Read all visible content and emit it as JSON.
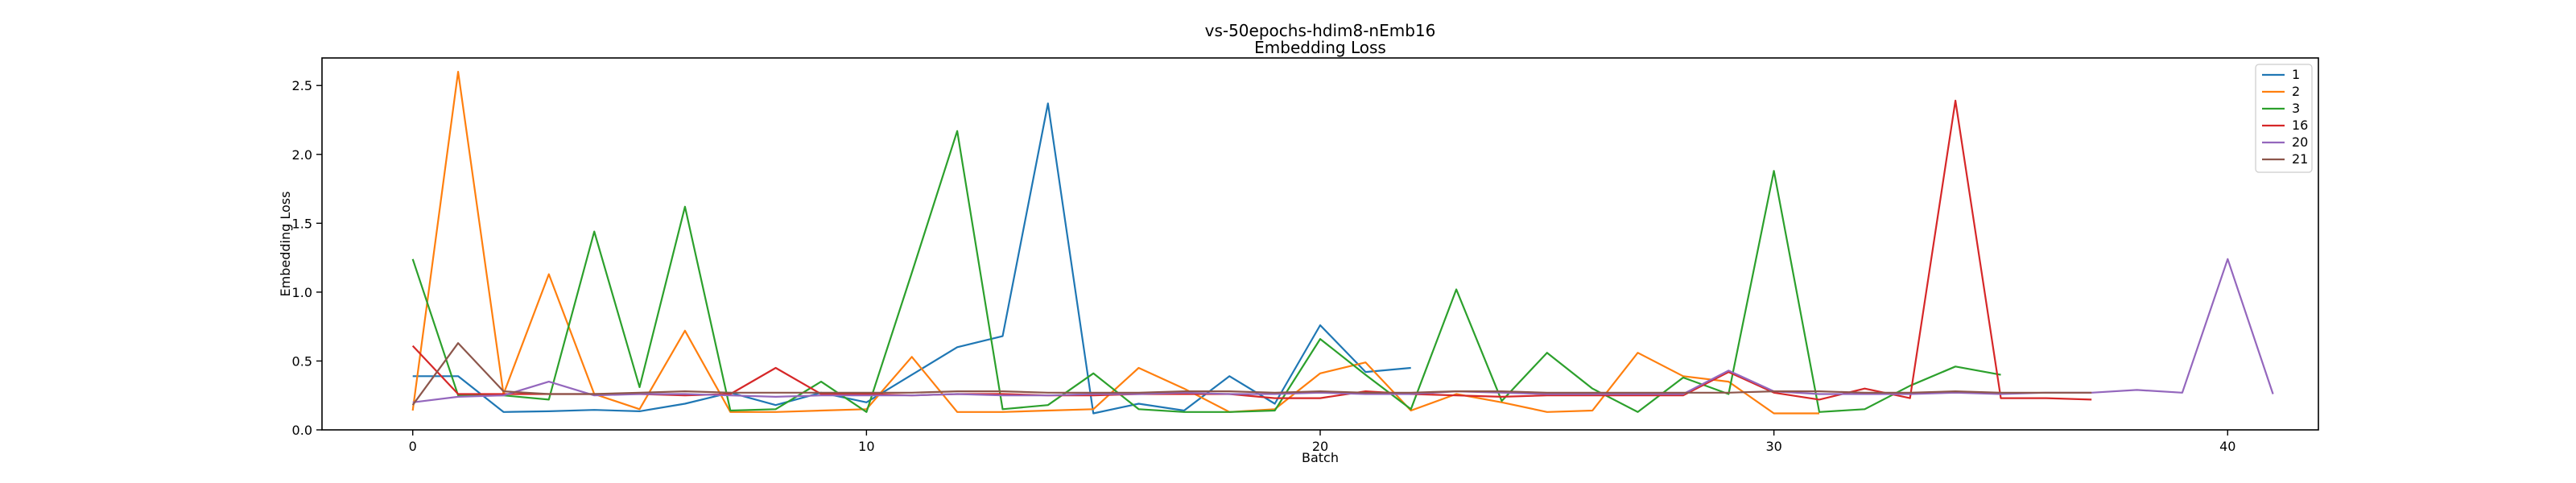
{
  "chart_data": {
    "type": "line",
    "title": "vs-50epochs-hdim8-nEmb16",
    "subtitle": "Embedding Loss",
    "xlabel": "Batch",
    "ylabel": "Embedding Loss",
    "xlim": [
      -2,
      42
    ],
    "ylim": [
      0,
      2.7
    ],
    "xticks": [
      0,
      10,
      20,
      30,
      40
    ],
    "yticks": [
      0.0,
      0.5,
      1.0,
      1.5,
      2.0,
      2.5
    ],
    "grid": false,
    "legend_position": "top-right",
    "series": [
      {
        "name": "1",
        "color": "#1f77b4",
        "x": [
          0,
          1,
          2,
          3,
          4,
          5,
          6,
          7,
          8,
          9,
          10,
          11,
          12,
          13,
          14,
          15,
          16,
          17,
          18,
          19,
          20,
          21,
          22
        ],
        "values": [
          0.39,
          0.39,
          0.13,
          0.135,
          0.145,
          0.135,
          0.19,
          0.27,
          0.18,
          0.27,
          0.2,
          0.4,
          0.6,
          0.68,
          2.37,
          0.12,
          0.19,
          0.14,
          0.39,
          0.19,
          0.76,
          0.42,
          0.45
        ]
      },
      {
        "name": "2",
        "color": "#ff7f0e",
        "x": [
          0,
          1,
          2,
          3,
          4,
          5,
          6,
          7,
          8,
          9,
          10,
          11,
          12,
          13,
          14,
          15,
          16,
          17,
          18,
          19,
          20,
          21,
          22,
          23,
          24,
          25,
          26,
          27,
          28,
          29,
          30,
          31
        ],
        "values": [
          0.14,
          2.6,
          0.26,
          1.13,
          0.26,
          0.15,
          0.72,
          0.13,
          0.13,
          0.14,
          0.15,
          0.53,
          0.13,
          0.13,
          0.14,
          0.15,
          0.45,
          0.3,
          0.13,
          0.15,
          0.41,
          0.49,
          0.14,
          0.26,
          0.2,
          0.13,
          0.14,
          0.56,
          0.39,
          0.35,
          0.12,
          0.12
        ]
      },
      {
        "name": "3",
        "color": "#2ca02c",
        "x": [
          0,
          1,
          2,
          3,
          4,
          5,
          6,
          7,
          8,
          9,
          10,
          11,
          12,
          13,
          14,
          15,
          16,
          17,
          18,
          19,
          20,
          21,
          22,
          23,
          24,
          25,
          26,
          27,
          28,
          29,
          30,
          31,
          32,
          33,
          34,
          35
        ],
        "values": [
          1.24,
          0.25,
          0.25,
          0.22,
          1.44,
          0.31,
          1.62,
          0.14,
          0.15,
          0.35,
          0.13,
          1.14,
          2.17,
          0.15,
          0.18,
          0.41,
          0.15,
          0.13,
          0.13,
          0.14,
          0.66,
          0.4,
          0.15,
          1.02,
          0.21,
          0.56,
          0.3,
          0.13,
          0.38,
          0.26,
          1.88,
          0.13,
          0.15,
          0.32,
          0.46,
          0.4
        ]
      },
      {
        "name": "16",
        "color": "#d62728",
        "x": [
          0,
          1,
          2,
          3,
          4,
          5,
          6,
          7,
          8,
          9,
          10,
          11,
          12,
          13,
          14,
          15,
          16,
          17,
          18,
          19,
          20,
          21,
          22,
          23,
          24,
          25,
          26,
          27,
          28,
          29,
          30,
          31,
          32,
          33,
          34,
          35,
          36,
          37
        ],
        "values": [
          0.61,
          0.26,
          0.26,
          0.26,
          0.26,
          0.26,
          0.25,
          0.26,
          0.45,
          0.26,
          0.26,
          0.25,
          0.26,
          0.26,
          0.25,
          0.25,
          0.26,
          0.26,
          0.26,
          0.23,
          0.23,
          0.28,
          0.26,
          0.25,
          0.24,
          0.25,
          0.25,
          0.25,
          0.25,
          0.42,
          0.27,
          0.22,
          0.3,
          0.23,
          2.39,
          0.23,
          0.23,
          0.22
        ]
      },
      {
        "name": "20",
        "color": "#9467bd",
        "x": [
          0,
          1,
          2,
          3,
          4,
          5,
          6,
          7,
          8,
          9,
          10,
          11,
          12,
          13,
          14,
          15,
          16,
          17,
          18,
          19,
          20,
          21,
          22,
          23,
          24,
          25,
          26,
          27,
          28,
          29,
          30,
          31,
          32,
          33,
          34,
          35,
          36,
          37,
          38,
          39,
          40,
          41
        ],
        "values": [
          0.2,
          0.24,
          0.25,
          0.35,
          0.25,
          0.26,
          0.26,
          0.25,
          0.24,
          0.25,
          0.25,
          0.25,
          0.26,
          0.25,
          0.25,
          0.26,
          0.26,
          0.27,
          0.26,
          0.26,
          0.27,
          0.26,
          0.26,
          0.28,
          0.27,
          0.26,
          0.26,
          0.26,
          0.26,
          0.43,
          0.28,
          0.26,
          0.26,
          0.26,
          0.27,
          0.26,
          0.27,
          0.27,
          0.29,
          0.27,
          1.24,
          0.26
        ]
      },
      {
        "name": "21",
        "color": "#8c564b",
        "x": [
          0,
          1,
          2,
          3,
          4,
          5,
          6,
          7,
          8,
          9,
          10,
          11,
          12,
          13,
          14,
          15,
          16,
          17,
          18,
          19,
          20,
          21,
          22,
          23,
          24,
          25,
          26,
          27,
          28,
          29,
          30,
          31,
          32,
          33,
          34,
          35,
          36,
          37
        ],
        "values": [
          0.18,
          0.63,
          0.28,
          0.26,
          0.26,
          0.27,
          0.28,
          0.27,
          0.27,
          0.27,
          0.27,
          0.27,
          0.28,
          0.28,
          0.27,
          0.27,
          0.27,
          0.28,
          0.28,
          0.27,
          0.28,
          0.27,
          0.27,
          0.28,
          0.28,
          0.27,
          0.27,
          0.27,
          0.27,
          0.27,
          0.28,
          0.28,
          0.27,
          0.27,
          0.28,
          0.27,
          0.27,
          0.27
        ]
      }
    ]
  }
}
